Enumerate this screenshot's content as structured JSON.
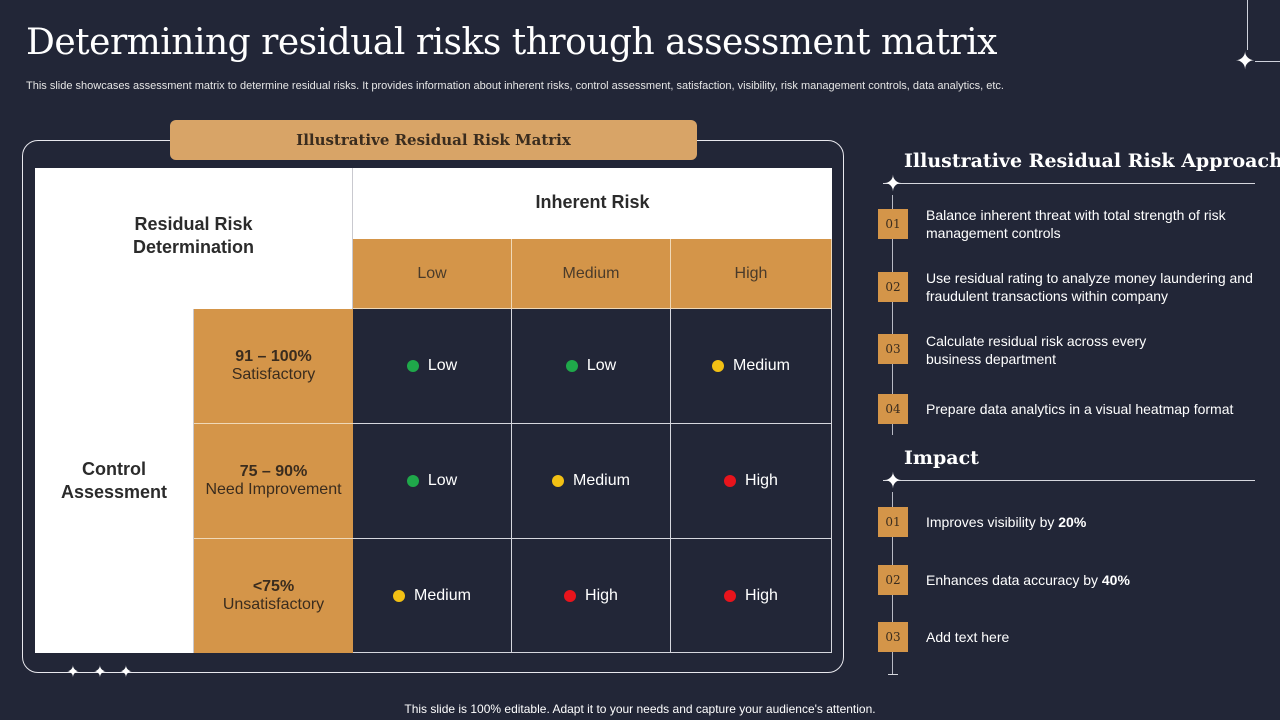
{
  "header": {
    "title": "Determining residual risks through assessment matrix",
    "subtitle": "This slide showcases assessment matrix to determine residual risks. It provides information about inherent risks, control assessment, satisfaction, visibility, risk management controls, data analytics, etc."
  },
  "matrix": {
    "tab_title": "Illustrative Residual Risk Matrix",
    "corner_label": "Residual Risk Determination",
    "inherent_label": "Inherent Risk",
    "columns": [
      "Low",
      "Medium",
      "High"
    ],
    "control_label": "Control Assessment",
    "rows": [
      {
        "pct": "91 – 100%",
        "status": "Satisfactory",
        "cells": [
          {
            "label": "Low",
            "color": "#1fa84a"
          },
          {
            "label": "Low",
            "color": "#1fa84a"
          },
          {
            "label": "Medium",
            "color": "#f2c014"
          }
        ]
      },
      {
        "pct": "75 – 90%",
        "status": "Need Improvement",
        "cells": [
          {
            "label": "Low",
            "color": "#1fa84a"
          },
          {
            "label": "Medium",
            "color": "#f2c014"
          },
          {
            "label": "High",
            "color": "#e8141c"
          }
        ]
      },
      {
        "pct": "<75%",
        "status": "Unsatisfactory",
        "cells": [
          {
            "label": "Medium",
            "color": "#f2c014"
          },
          {
            "label": "High",
            "color": "#e8141c"
          },
          {
            "label": "High",
            "color": "#e8141c"
          }
        ]
      }
    ]
  },
  "approach": {
    "title": "Illustrative Residual Risk Approach",
    "items": [
      {
        "num": "01",
        "text": "Balance inherent threat with total strength of risk management controls"
      },
      {
        "num": "02",
        "text": "Use residual rating to analyze money laundering and fraudulent transactions within company"
      },
      {
        "num": "03",
        "text": "Calculate residual risk across every business department"
      },
      {
        "num": "04",
        "text": "Prepare data analytics in a visual heatmap format"
      }
    ]
  },
  "impact": {
    "title": "Impact",
    "items": [
      {
        "num": "01",
        "text": "Improves visibility by ",
        "bold": "20%"
      },
      {
        "num": "02",
        "text": "Enhances data accuracy by ",
        "bold": "40%"
      },
      {
        "num": "03",
        "text": "Add text here",
        "bold": ""
      }
    ]
  },
  "footer": "This slide is 100% editable. Adapt it to your needs and capture your audience's attention.",
  "colors": {
    "background": "#222637",
    "accent": "#d49549",
    "tab": "#d8a467",
    "low": "#1fa84a",
    "medium": "#f2c014",
    "high": "#e8141c"
  },
  "icons": [
    "sparkle-star-icon"
  ]
}
